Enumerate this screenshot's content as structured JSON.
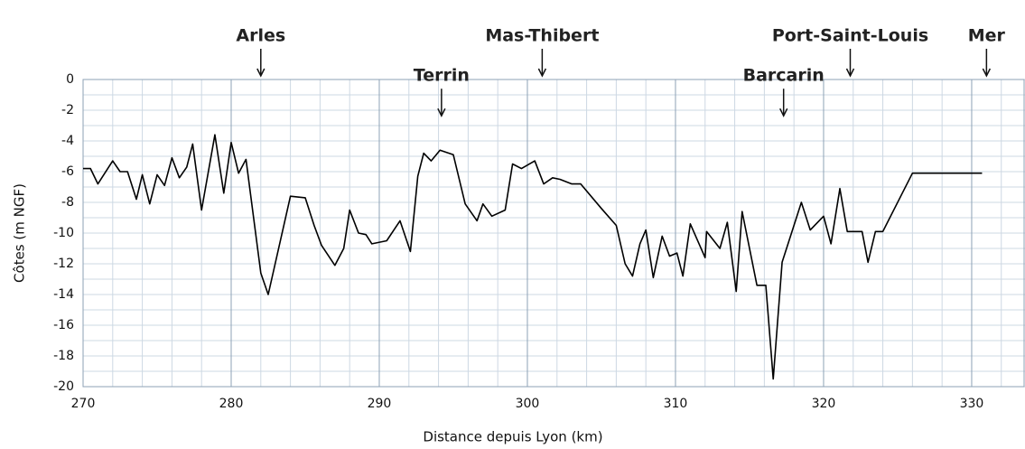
{
  "chart_data": {
    "type": "line",
    "xlabel": "Distance depuis Lyon (km)",
    "ylabel": "Côtes (m NGF)",
    "xlim": [
      270,
      333.6
    ],
    "ylim": [
      -20,
      0
    ],
    "xticks": [
      270,
      280,
      290,
      300,
      310,
      320,
      330
    ],
    "yticks": [
      0,
      -2,
      -4,
      -6,
      -8,
      -10,
      -12,
      -14,
      -16,
      -18,
      -20
    ],
    "xticks_minor": [
      272,
      274,
      276,
      278,
      282,
      284,
      286,
      288,
      292,
      294,
      296,
      298,
      302,
      304,
      306,
      308,
      312,
      314,
      316,
      318,
      322,
      324,
      326,
      328,
      332
    ],
    "yticks_minor": [
      -1,
      -3,
      -5,
      -7,
      -9,
      -11,
      -13,
      -15,
      -17,
      -19
    ],
    "grid": true,
    "color": "#000000",
    "annotations": [
      {
        "text": "Arles",
        "x": 282,
        "y": 0
      },
      {
        "text": "Terrin",
        "x": 294.2,
        "y": -2.6
      },
      {
        "text": "Mas-Thibert",
        "x": 301,
        "y": 0
      },
      {
        "text": "Barcarin",
        "x": 317.3,
        "y": -2.6
      },
      {
        "text": "Port-Saint-Louis",
        "x": 321.8,
        "y": 0
      },
      {
        "text": "Mer",
        "x": 331,
        "y": 0
      }
    ],
    "x": [
      270,
      270.5,
      271,
      272,
      272.5,
      273,
      273.6,
      274,
      274.5,
      275,
      275.5,
      276,
      276.5,
      277,
      277.4,
      278,
      278.9,
      279.5,
      280,
      280.5,
      281,
      282,
      282.5,
      284,
      285,
      285.6,
      286.1,
      287,
      287.6,
      288,
      288.6,
      289.1,
      289.5,
      290.5,
      291.4,
      292.1,
      292.6,
      293,
      293.5,
      294.1,
      295,
      295.8,
      296.6,
      297,
      297.6,
      298.5,
      299,
      299.6,
      300.5,
      301.1,
      301.7,
      302.2,
      303,
      303.6,
      305,
      306,
      306.6,
      307.1,
      307.6,
      308,
      308.5,
      309.1,
      309.6,
      310.1,
      310.5,
      311,
      312,
      312.1,
      313,
      313.5,
      314.1,
      314.5,
      315.5,
      316.1,
      316.6,
      317.2,
      318.5,
      319.1,
      320,
      320.5,
      321.1,
      321.6,
      322.6,
      323,
      323.5,
      324,
      326,
      330.7
    ],
    "values": [
      -5.8,
      -5.8,
      -6.8,
      -5.3,
      -6.0,
      -6.0,
      -7.8,
      -6.2,
      -8.1,
      -6.2,
      -6.9,
      -5.1,
      -6.4,
      -5.7,
      -4.2,
      -8.5,
      -3.6,
      -7.4,
      -4.1,
      -6.1,
      -5.2,
      -12.6,
      -14,
      -7.6,
      -7.7,
      -9.5,
      -10.8,
      -12.1,
      -11,
      -8.5,
      -10,
      -10.1,
      -10.7,
      -10.5,
      -9.2,
      -11.2,
      -6.3,
      -4.8,
      -5.3,
      -4.6,
      -4.9,
      -8.1,
      -9.2,
      -8.1,
      -8.9,
      -8.5,
      -5.5,
      -5.8,
      -5.3,
      -6.8,
      -6.4,
      -6.5,
      -6.8,
      -6.8,
      -8.4,
      -9.5,
      -12,
      -12.8,
      -10.7,
      -9.8,
      -12.9,
      -10.2,
      -11.5,
      -11.3,
      -12.8,
      -9.4,
      -11.6,
      -9.9,
      -11,
      -9.3,
      -13.8,
      -8.6,
      -13.4,
      -13.4,
      -19.5,
      -11.9,
      -8,
      -9.8,
      -8.9,
      -10.7,
      -7.1,
      -9.9,
      -9.9,
      -11.9,
      -9.9,
      -9.9,
      -6.1,
      -6.1
    ]
  }
}
